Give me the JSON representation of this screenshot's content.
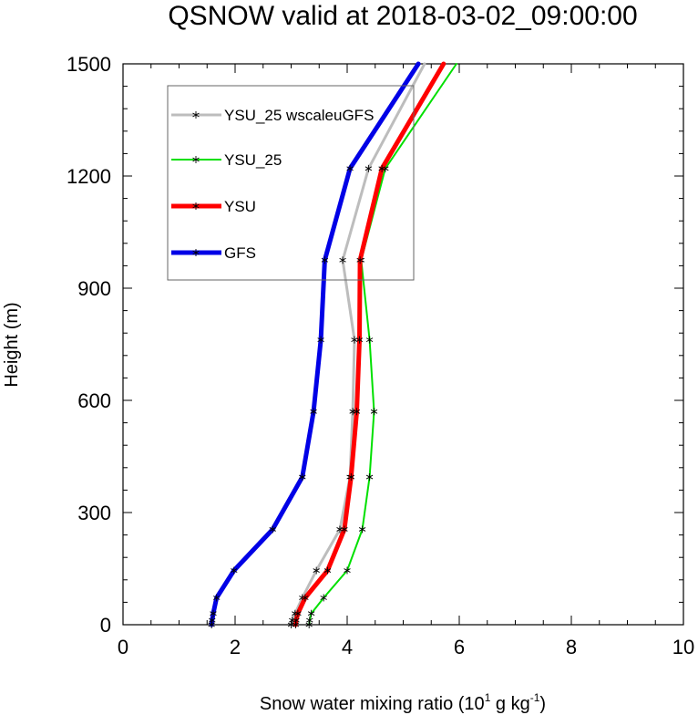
{
  "chart_data": {
    "type": "line",
    "title": "QSNOW valid at 2018-03-02_09:00:00",
    "xlabel": {
      "prefix": "Snow water mixing ratio (10",
      "exp1": "1",
      "mid": " g kg",
      "exp2": "-1",
      "suffix": ")"
    },
    "ylabel": "Height (m)",
    "xlim": [
      0,
      10
    ],
    "ylim": [
      0,
      1500
    ],
    "xticks": [
      0,
      2,
      4,
      6,
      8,
      10
    ],
    "yticks": [
      0,
      300,
      600,
      900,
      1200,
      1500
    ],
    "grid": false,
    "legend_position": "top-left",
    "series": [
      {
        "name": "YSU_25 wscaleuGFS",
        "color": "#bdbdbd",
        "width": 3,
        "x": [
          3.0,
          3.02,
          3.07,
          3.2,
          3.45,
          3.87,
          4.05,
          4.1,
          4.13,
          3.92,
          4.38,
          5.38
        ],
        "y": [
          0,
          12,
          30,
          72,
          145,
          255,
          395,
          570,
          762,
          975,
          1220,
          1500
        ]
      },
      {
        "name": "YSU_25",
        "color": "#00e000",
        "width": 2,
        "x": [
          3.32,
          3.33,
          3.36,
          3.58,
          4.0,
          4.27,
          4.4,
          4.48,
          4.4,
          4.25,
          4.68,
          5.95
        ],
        "y": [
          0,
          12,
          30,
          72,
          145,
          255,
          395,
          570,
          762,
          975,
          1220,
          1500
        ]
      },
      {
        "name": "YSU",
        "color": "#ff0000",
        "width": 5,
        "x": [
          3.08,
          3.09,
          3.12,
          3.25,
          3.65,
          3.95,
          4.07,
          4.17,
          4.22,
          4.23,
          4.62,
          5.72
        ],
        "y": [
          0,
          12,
          30,
          72,
          145,
          255,
          395,
          570,
          762,
          975,
          1220,
          1500
        ]
      },
      {
        "name": "GFS",
        "color": "#0000e6",
        "width": 5,
        "x": [
          1.58,
          1.59,
          1.61,
          1.67,
          1.98,
          2.67,
          3.2,
          3.4,
          3.53,
          3.6,
          4.05,
          5.27
        ],
        "y": [
          0,
          12,
          30,
          72,
          145,
          255,
          395,
          570,
          762,
          975,
          1220,
          1500
        ]
      }
    ]
  }
}
